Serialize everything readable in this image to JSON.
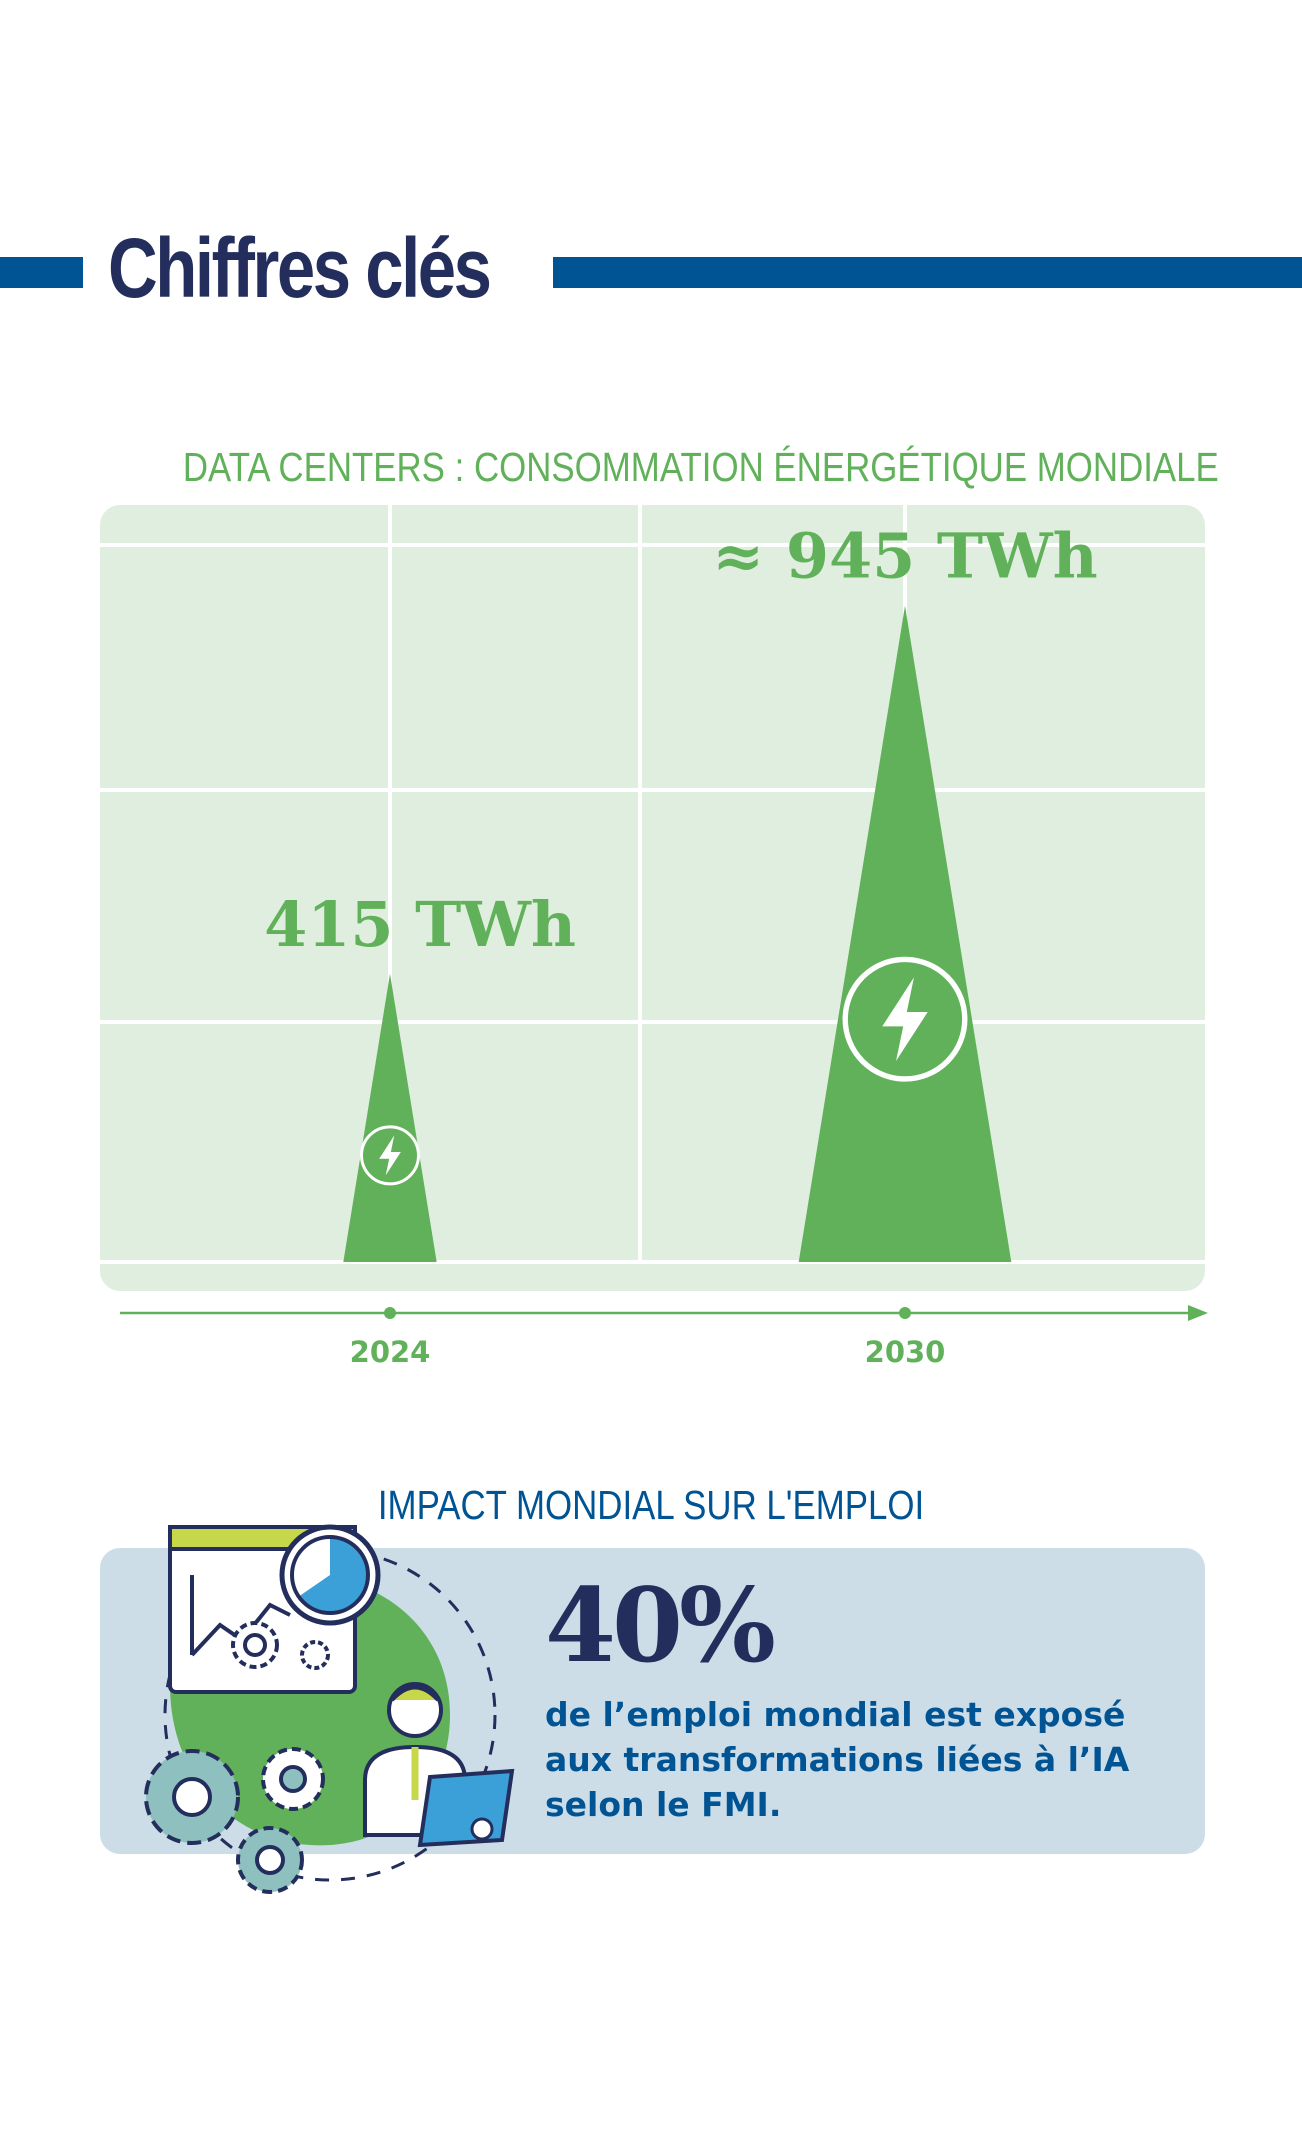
{
  "header": {
    "title": "Chiffres clés"
  },
  "chart_data": {
    "type": "bar",
    "title": "DATA CENTERS : CONSOMMATION ÉNERGÉTIQUE MONDIALE",
    "categories": [
      "2024",
      "2030"
    ],
    "values": [
      415,
      945
    ],
    "value_labels": [
      "415 TWh",
      "≈ 945 TWh"
    ],
    "unit": "TWh",
    "marker_shape": "triangle",
    "marker_icon": "lightning-bolt-icon",
    "grid": true,
    "xlabel": "",
    "ylabel": "",
    "ylim": [
      0,
      1090
    ],
    "colors": {
      "mark": "#61b15a",
      "plot_background": "#e0eedf",
      "grid": "#ffffff",
      "axis": "#61b15a"
    }
  },
  "impact": {
    "title": "IMPACT MONDIAL SUR L'EMPLOI",
    "stat": "40%",
    "description": "de l’emploi mondial est exposé aux transformations liées à l’IA selon le FMI.",
    "illustration_icon": "analyst-with-gears-icon"
  },
  "colors": {
    "title_navy": "#232e5c",
    "accent_blue": "#005494",
    "green": "#61b15a",
    "light_green": "#e0eedf",
    "light_blue": "#ccdde8"
  }
}
